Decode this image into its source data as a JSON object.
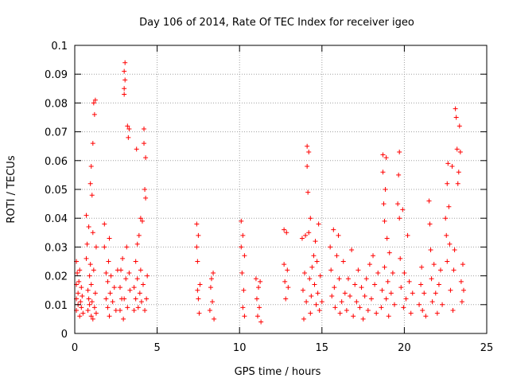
{
  "chart_data": {
    "type": "scatter",
    "title": "Day 106 of 2014, Rate Of TEC Index for receiver igeo",
    "xlabel": "GPS time / hours",
    "ylabel": "ROTI / TECUs",
    "xlim": [
      0,
      25
    ],
    "ylim": [
      0,
      0.1
    ],
    "grid": true,
    "marker": "+",
    "color": "#ff0000",
    "x_ticks": [
      0,
      5,
      10,
      15,
      20,
      25
    ],
    "x_tick_labels": [
      "0",
      "5",
      "10",
      "15",
      "20",
      "25"
    ],
    "y_ticks": [
      0,
      0.01,
      0.02,
      0.03,
      0.04,
      0.05,
      0.06,
      0.07,
      0.08,
      0.09,
      0.1
    ],
    "y_tick_labels": [
      "0",
      "0.01",
      "0.02",
      "0.03",
      "0.04",
      "0.05",
      "0.06",
      "0.07",
      "0.08",
      "0.09",
      "0.1"
    ],
    "series": [
      {
        "name": "ROTI",
        "points": [
          [
            0.1,
            0.025
          ],
          [
            0.1,
            0.017
          ],
          [
            0.1,
            0.012
          ],
          [
            0.1,
            0.008
          ],
          [
            0.15,
            0.021
          ],
          [
            0.2,
            0.01
          ],
          [
            0.2,
            0.014
          ],
          [
            0.25,
            0.018
          ],
          [
            0.3,
            0.006
          ],
          [
            0.3,
            0.022
          ],
          [
            0.35,
            0.011
          ],
          [
            0.4,
            0.009
          ],
          [
            0.4,
            0.016
          ],
          [
            0.45,
            0.013
          ],
          [
            0.5,
            0.007
          ],
          [
            0.7,
            0.041
          ],
          [
            0.7,
            0.026
          ],
          [
            0.75,
            0.031
          ],
          [
            0.8,
            0.015
          ],
          [
            0.8,
            0.008
          ],
          [
            0.85,
            0.037
          ],
          [
            0.85,
            0.012
          ],
          [
            0.9,
            0.02
          ],
          [
            0.9,
            0.01
          ],
          [
            0.95,
            0.052
          ],
          [
            0.95,
            0.024
          ],
          [
            1.0,
            0.058
          ],
          [
            1.0,
            0.017
          ],
          [
            1.0,
            0.006
          ],
          [
            1.05,
            0.048
          ],
          [
            1.05,
            0.011
          ],
          [
            1.1,
            0.066
          ],
          [
            1.1,
            0.035
          ],
          [
            1.1,
            0.005
          ],
          [
            1.15,
            0.08
          ],
          [
            1.15,
            0.022
          ],
          [
            1.2,
            0.076
          ],
          [
            1.2,
            0.009
          ],
          [
            1.25,
            0.081
          ],
          [
            1.25,
            0.014
          ],
          [
            1.3,
            0.03
          ],
          [
            1.3,
            0.007
          ],
          [
            1.8,
            0.03
          ],
          [
            1.8,
            0.038
          ],
          [
            1.9,
            0.012
          ],
          [
            1.9,
            0.021
          ],
          [
            2.0,
            0.009
          ],
          [
            2.0,
            0.018
          ],
          [
            2.05,
            0.025
          ],
          [
            2.1,
            0.006
          ],
          [
            2.1,
            0.033
          ],
          [
            2.15,
            0.014
          ],
          [
            2.2,
            0.02
          ],
          [
            2.3,
            0.011
          ],
          [
            2.4,
            0.016
          ],
          [
            2.5,
            0.008
          ],
          [
            2.6,
            0.022
          ],
          [
            2.75,
            0.008
          ],
          [
            2.75,
            0.016
          ],
          [
            2.8,
            0.022
          ],
          [
            2.85,
            0.012
          ],
          [
            2.9,
            0.026
          ],
          [
            2.95,
            0.005
          ],
          [
            3.0,
            0.091
          ],
          [
            3.0,
            0.083
          ],
          [
            3.0,
            0.085
          ],
          [
            3.0,
            0.012
          ],
          [
            3.05,
            0.094
          ],
          [
            3.05,
            0.088
          ],
          [
            3.1,
            0.019
          ],
          [
            3.15,
            0.03
          ],
          [
            3.2,
            0.072
          ],
          [
            3.2,
            0.009
          ],
          [
            3.25,
            0.068
          ],
          [
            3.3,
            0.071
          ],
          [
            3.3,
            0.021
          ],
          [
            3.35,
            0.015
          ],
          [
            3.6,
            0.008
          ],
          [
            3.6,
            0.016
          ],
          [
            3.7,
            0.025
          ],
          [
            3.7,
            0.012
          ],
          [
            3.75,
            0.064
          ],
          [
            3.8,
            0.031
          ],
          [
            3.8,
            0.019
          ],
          [
            3.85,
            0.009
          ],
          [
            3.9,
            0.034
          ],
          [
            3.95,
            0.014
          ],
          [
            4.0,
            0.04
          ],
          [
            4.0,
            0.022
          ],
          [
            4.05,
            0.011
          ],
          [
            4.1,
            0.039
          ],
          [
            4.15,
            0.017
          ],
          [
            4.2,
            0.071
          ],
          [
            4.2,
            0.066
          ],
          [
            4.25,
            0.05
          ],
          [
            4.25,
            0.008
          ],
          [
            4.3,
            0.061
          ],
          [
            4.3,
            0.047
          ],
          [
            4.35,
            0.012
          ],
          [
            4.4,
            0.02
          ],
          [
            7.4,
            0.038
          ],
          [
            7.4,
            0.03
          ],
          [
            7.45,
            0.025
          ],
          [
            7.45,
            0.015
          ],
          [
            7.5,
            0.034
          ],
          [
            7.5,
            0.012
          ],
          [
            7.55,
            0.007
          ],
          [
            7.6,
            0.017
          ],
          [
            8.2,
            0.008
          ],
          [
            8.25,
            0.016
          ],
          [
            8.3,
            0.019
          ],
          [
            8.35,
            0.011
          ],
          [
            8.4,
            0.021
          ],
          [
            8.45,
            0.005
          ],
          [
            10.1,
            0.039
          ],
          [
            10.1,
            0.03
          ],
          [
            10.15,
            0.021
          ],
          [
            10.2,
            0.034
          ],
          [
            10.2,
            0.009
          ],
          [
            10.25,
            0.015
          ],
          [
            10.3,
            0.006
          ],
          [
            10.3,
            0.027
          ],
          [
            11.0,
            0.019
          ],
          [
            11.05,
            0.012
          ],
          [
            11.1,
            0.006
          ],
          [
            11.15,
            0.016
          ],
          [
            11.2,
            0.009
          ],
          [
            11.25,
            0.018
          ],
          [
            11.3,
            0.004
          ],
          [
            12.7,
            0.036
          ],
          [
            12.7,
            0.024
          ],
          [
            12.75,
            0.018
          ],
          [
            12.8,
            0.012
          ],
          [
            12.85,
            0.035
          ],
          [
            12.9,
            0.022
          ],
          [
            12.95,
            0.016
          ],
          [
            13.8,
            0.033
          ],
          [
            13.85,
            0.015
          ],
          [
            13.9,
            0.005
          ],
          [
            13.95,
            0.021
          ],
          [
            14.0,
            0.034
          ],
          [
            14.05,
            0.011
          ],
          [
            14.1,
            0.065
          ],
          [
            14.1,
            0.058
          ],
          [
            14.15,
            0.049
          ],
          [
            14.2,
            0.063
          ],
          [
            14.2,
            0.035
          ],
          [
            14.25,
            0.019
          ],
          [
            14.3,
            0.04
          ],
          [
            14.3,
            0.007
          ],
          [
            14.35,
            0.013
          ],
          [
            14.4,
            0.023
          ],
          [
            14.5,
            0.027
          ],
          [
            14.55,
            0.017
          ],
          [
            14.6,
            0.032
          ],
          [
            14.65,
            0.01
          ],
          [
            14.7,
            0.025
          ],
          [
            14.75,
            0.014
          ],
          [
            14.8,
            0.038
          ],
          [
            14.85,
            0.008
          ],
          [
            14.9,
            0.02
          ],
          [
            15.0,
            0.011
          ],
          [
            15.5,
            0.03
          ],
          [
            15.55,
            0.022
          ],
          [
            15.6,
            0.013
          ],
          [
            15.7,
            0.036
          ],
          [
            15.75,
            0.016
          ],
          [
            15.8,
            0.009
          ],
          [
            15.9,
            0.027
          ],
          [
            16.0,
            0.034
          ],
          [
            16.05,
            0.019
          ],
          [
            16.1,
            0.007
          ],
          [
            16.2,
            0.011
          ],
          [
            16.3,
            0.025
          ],
          [
            16.4,
            0.014
          ],
          [
            16.5,
            0.008
          ],
          [
            16.6,
            0.019
          ],
          [
            16.7,
            0.013
          ],
          [
            16.8,
            0.029
          ],
          [
            16.9,
            0.006
          ],
          [
            17.0,
            0.017
          ],
          [
            17.1,
            0.011
          ],
          [
            17.2,
            0.022
          ],
          [
            17.3,
            0.009
          ],
          [
            17.4,
            0.016
          ],
          [
            17.5,
            0.005
          ],
          [
            17.6,
            0.013
          ],
          [
            17.7,
            0.019
          ],
          [
            17.8,
            0.008
          ],
          [
            17.9,
            0.024
          ],
          [
            18.0,
            0.012
          ],
          [
            18.1,
            0.027
          ],
          [
            18.2,
            0.017
          ],
          [
            18.3,
            0.007
          ],
          [
            18.4,
            0.021
          ],
          [
            18.6,
            0.009
          ],
          [
            18.65,
            0.015
          ],
          [
            18.7,
            0.062
          ],
          [
            18.7,
            0.056
          ],
          [
            18.75,
            0.045
          ],
          [
            18.8,
            0.039
          ],
          [
            18.8,
            0.023
          ],
          [
            18.85,
            0.05
          ],
          [
            18.9,
            0.061
          ],
          [
            18.9,
            0.012
          ],
          [
            18.95,
            0.033
          ],
          [
            19.0,
            0.018
          ],
          [
            19.05,
            0.006
          ],
          [
            19.1,
            0.028
          ],
          [
            19.2,
            0.014
          ],
          [
            19.3,
            0.021
          ],
          [
            19.4,
            0.01
          ],
          [
            19.6,
            0.045
          ],
          [
            19.65,
            0.055
          ],
          [
            19.7,
            0.063
          ],
          [
            19.7,
            0.04
          ],
          [
            19.75,
            0.026
          ],
          [
            19.8,
            0.016
          ],
          [
            19.9,
            0.043
          ],
          [
            19.95,
            0.009
          ],
          [
            20.0,
            0.021
          ],
          [
            20.1,
            0.012
          ],
          [
            20.2,
            0.034
          ],
          [
            20.3,
            0.018
          ],
          [
            20.4,
            0.007
          ],
          [
            20.5,
            0.014
          ],
          [
            20.9,
            0.01
          ],
          [
            21.0,
            0.017
          ],
          [
            21.05,
            0.023
          ],
          [
            21.1,
            0.008
          ],
          [
            21.2,
            0.014
          ],
          [
            21.3,
            0.006
          ],
          [
            21.5,
            0.046
          ],
          [
            21.55,
            0.038
          ],
          [
            21.6,
            0.029
          ],
          [
            21.65,
            0.019
          ],
          [
            21.7,
            0.011
          ],
          [
            21.8,
            0.024
          ],
          [
            21.9,
            0.014
          ],
          [
            22.0,
            0.007
          ],
          [
            22.1,
            0.017
          ],
          [
            22.2,
            0.022
          ],
          [
            22.3,
            0.01
          ],
          [
            22.5,
            0.04
          ],
          [
            22.55,
            0.034
          ],
          [
            22.6,
            0.052
          ],
          [
            22.6,
            0.025
          ],
          [
            22.65,
            0.059
          ],
          [
            22.7,
            0.044
          ],
          [
            22.75,
            0.031
          ],
          [
            22.8,
            0.015
          ],
          [
            22.9,
            0.058
          ],
          [
            22.95,
            0.008
          ],
          [
            23.0,
            0.022
          ],
          [
            23.05,
            0.029
          ],
          [
            23.1,
            0.078
          ],
          [
            23.15,
            0.075
          ],
          [
            23.2,
            0.064
          ],
          [
            23.25,
            0.052
          ],
          [
            23.3,
            0.056
          ],
          [
            23.35,
            0.072
          ],
          [
            23.4,
            0.063
          ],
          [
            23.45,
            0.018
          ],
          [
            23.5,
            0.011
          ],
          [
            23.55,
            0.024
          ],
          [
            23.6,
            0.015
          ]
        ]
      }
    ]
  }
}
